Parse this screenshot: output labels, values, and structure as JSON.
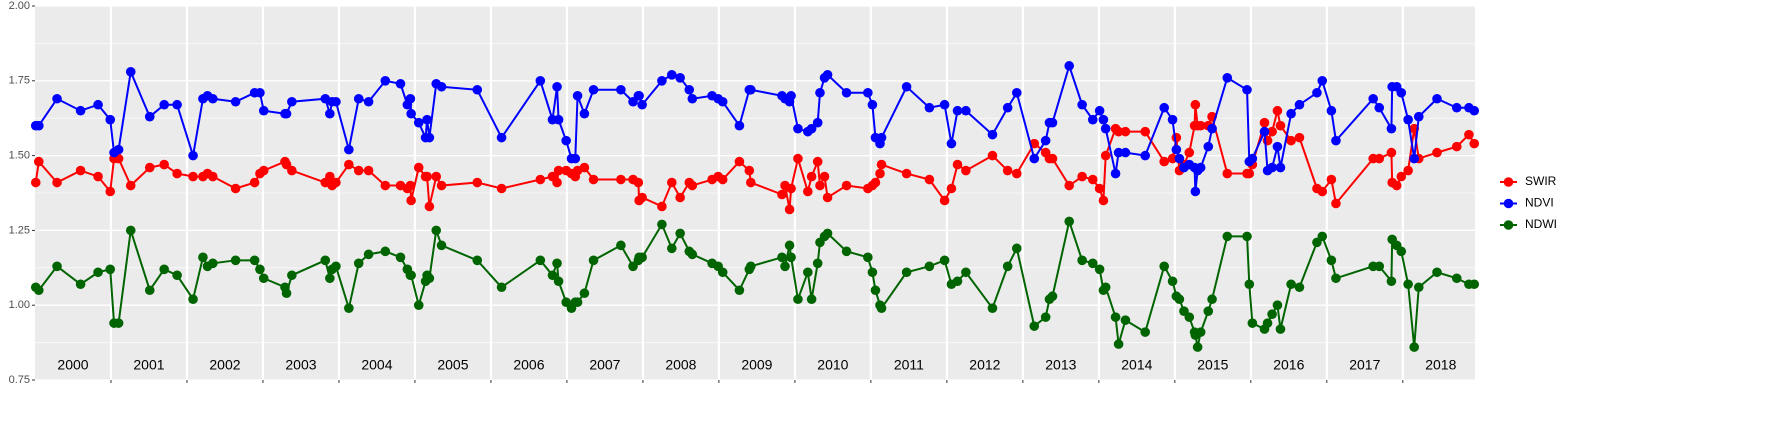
{
  "chart_data": {
    "type": "line",
    "x": [
      2000.01,
      2000.05,
      2000.29,
      2000.6,
      2000.83,
      2000.99,
      2001.04,
      2001.1,
      2001.26,
      2001.51,
      2001.7,
      2001.87,
      2002.08,
      2002.21,
      2002.27,
      2002.34,
      2002.64,
      2002.89,
      2002.96,
      2003.01,
      2003.29,
      2003.31,
      2003.38,
      2003.82,
      2003.88,
      2003.91,
      2003.96,
      2004.13,
      2004.26,
      2004.39,
      2004.61,
      2004.81,
      2004.9,
      2004.94,
      2004.95,
      2005.05,
      2005.14,
      2005.16,
      2005.19,
      2005.28,
      2005.35,
      2005.82,
      2006.14,
      2006.65,
      2006.81,
      2006.87,
      2006.89,
      2006.99,
      2007.06,
      2007.11,
      2007.14,
      2007.23,
      2007.35,
      2007.71,
      2007.87,
      2007.94,
      2007.95,
      2007.99,
      2008.25,
      2008.38,
      2008.49,
      2008.61,
      2008.65,
      2008.91,
      2008.99,
      2009.05,
      2009.27,
      2009.4,
      2009.42,
      2009.83,
      2009.87,
      2009.93,
      2009.95,
      2010.04,
      2010.17,
      2010.22,
      2010.3,
      2010.33,
      2010.39,
      2010.43,
      2010.68,
      2010.96,
      2011.02,
      2011.06,
      2011.12,
      2011.14,
      2011.47,
      2011.77,
      2011.97,
      2012.06,
      2012.14,
      2012.25,
      2012.6,
      2012.8,
      2012.92,
      2013.15,
      2013.3,
      2013.35,
      2013.39,
      2013.61,
      2013.78,
      2013.92,
      2014.01,
      2014.06,
      2014.09,
      2014.22,
      2014.26,
      2014.35,
      2014.61,
      2014.86,
      2014.97,
      2015.02,
      2015.06,
      2015.12,
      2015.19,
      2015.26,
      2015.27,
      2015.3,
      2015.34,
      2015.44,
      2015.49,
      2015.69,
      2015.95,
      2015.98,
      2016.02,
      2016.18,
      2016.22,
      2016.28,
      2016.35,
      2016.39,
      2016.53,
      2016.64,
      2016.87,
      2016.94,
      2017.06,
      2017.12,
      2017.61,
      2017.69,
      2017.85,
      2017.86,
      2017.92,
      2017.98,
      2018.07,
      2018.15,
      2018.21,
      2018.45,
      2018.71,
      2018.87,
      2018.94
    ],
    "series": [
      {
        "name": "SWIR",
        "color": "#ff0000",
        "values": [
          1.41,
          1.48,
          1.41,
          1.45,
          1.43,
          1.38,
          1.49,
          1.49,
          1.4,
          1.46,
          1.47,
          1.44,
          1.43,
          1.43,
          1.44,
          1.43,
          1.39,
          1.41,
          1.44,
          1.45,
          1.48,
          1.47,
          1.45,
          1.41,
          1.43,
          1.4,
          1.41,
          1.47,
          1.45,
          1.45,
          1.4,
          1.4,
          1.39,
          1.4,
          1.35,
          1.46,
          1.43,
          1.43,
          1.33,
          1.43,
          1.4,
          1.41,
          1.39,
          1.42,
          1.43,
          1.41,
          1.45,
          1.45,
          1.44,
          1.43,
          1.45,
          1.46,
          1.42,
          1.42,
          1.42,
          1.41,
          1.35,
          1.36,
          1.33,
          1.41,
          1.36,
          1.41,
          1.4,
          1.42,
          1.43,
          1.42,
          1.48,
          1.45,
          1.41,
          1.37,
          1.4,
          1.32,
          1.39,
          1.49,
          1.38,
          1.43,
          1.48,
          1.4,
          1.43,
          1.36,
          1.4,
          1.39,
          1.4,
          1.41,
          1.44,
          1.47,
          1.44,
          1.42,
          1.35,
          1.39,
          1.47,
          1.45,
          1.5,
          1.45,
          1.44,
          1.54,
          1.51,
          1.49,
          1.49,
          1.4,
          1.43,
          1.42,
          1.39,
          1.35,
          1.5,
          1.59,
          1.58,
          1.58,
          1.58,
          1.48,
          1.49,
          1.56,
          1.45,
          1.47,
          1.51,
          1.6,
          1.67,
          1.6,
          1.6,
          1.6,
          1.63,
          1.44,
          1.44,
          1.44,
          1.47,
          1.61,
          1.55,
          1.58,
          1.65,
          1.6,
          1.55,
          1.56,
          1.39,
          1.38,
          1.42,
          1.34,
          1.49,
          1.49,
          1.51,
          1.41,
          1.4,
          1.43,
          1.45,
          1.59,
          1.49,
          1.51,
          1.53,
          1.57,
          1.54
        ]
      },
      {
        "name": "NDVI",
        "color": "#0000ff",
        "values": [
          1.6,
          1.6,
          1.69,
          1.65,
          1.67,
          1.62,
          1.51,
          1.52,
          1.78,
          1.63,
          1.67,
          1.67,
          1.5,
          1.69,
          1.7,
          1.69,
          1.68,
          1.71,
          1.71,
          1.65,
          1.64,
          1.64,
          1.68,
          1.69,
          1.64,
          1.68,
          1.68,
          1.52,
          1.69,
          1.68,
          1.75,
          1.74,
          1.67,
          1.69,
          1.64,
          1.61,
          1.56,
          1.62,
          1.56,
          1.74,
          1.73,
          1.72,
          1.56,
          1.75,
          1.62,
          1.73,
          1.62,
          1.55,
          1.49,
          1.49,
          1.7,
          1.64,
          1.72,
          1.72,
          1.68,
          1.7,
          1.7,
          1.67,
          1.75,
          1.77,
          1.76,
          1.72,
          1.69,
          1.7,
          1.69,
          1.68,
          1.6,
          1.72,
          1.72,
          1.7,
          1.69,
          1.68,
          1.7,
          1.59,
          1.58,
          1.59,
          1.61,
          1.71,
          1.76,
          1.77,
          1.71,
          1.71,
          1.67,
          1.56,
          1.54,
          1.56,
          1.73,
          1.66,
          1.67,
          1.54,
          1.65,
          1.65,
          1.57,
          1.66,
          1.71,
          1.49,
          1.55,
          1.61,
          1.61,
          1.8,
          1.67,
          1.62,
          1.65,
          1.62,
          1.59,
          1.44,
          1.51,
          1.51,
          1.5,
          1.66,
          1.62,
          1.52,
          1.49,
          1.46,
          1.47,
          1.46,
          1.38,
          1.45,
          1.46,
          1.53,
          1.59,
          1.76,
          1.72,
          1.48,
          1.49,
          1.58,
          1.45,
          1.46,
          1.53,
          1.46,
          1.64,
          1.67,
          1.71,
          1.75,
          1.65,
          1.55,
          1.69,
          1.66,
          1.59,
          1.73,
          1.73,
          1.71,
          1.62,
          1.49,
          1.63,
          1.69,
          1.66,
          1.66,
          1.65
        ]
      },
      {
        "name": "NDWI",
        "color": "#006400",
        "values": [
          1.06,
          1.05,
          1.13,
          1.07,
          1.11,
          1.12,
          0.94,
          0.94,
          1.25,
          1.05,
          1.12,
          1.1,
          1.02,
          1.16,
          1.13,
          1.14,
          1.15,
          1.15,
          1.12,
          1.09,
          1.06,
          1.04,
          1.1,
          1.15,
          1.09,
          1.12,
          1.13,
          0.99,
          1.14,
          1.17,
          1.18,
          1.16,
          1.12,
          1.1,
          1.1,
          1.0,
          1.08,
          1.1,
          1.09,
          1.25,
          1.2,
          1.15,
          1.06,
          1.15,
          1.1,
          1.14,
          1.08,
          1.01,
          0.99,
          1.01,
          1.01,
          1.04,
          1.15,
          1.2,
          1.13,
          1.15,
          1.16,
          1.16,
          1.27,
          1.19,
          1.24,
          1.18,
          1.17,
          1.14,
          1.13,
          1.11,
          1.05,
          1.12,
          1.13,
          1.16,
          1.13,
          1.2,
          1.16,
          1.02,
          1.11,
          1.02,
          1.14,
          1.21,
          1.23,
          1.24,
          1.18,
          1.16,
          1.11,
          1.05,
          1.0,
          0.99,
          1.11,
          1.13,
          1.15,
          1.07,
          1.08,
          1.11,
          0.99,
          1.13,
          1.19,
          0.93,
          0.96,
          1.02,
          1.03,
          1.28,
          1.15,
          1.14,
          1.12,
          1.05,
          1.06,
          0.96,
          0.87,
          0.95,
          0.91,
          1.13,
          1.08,
          1.03,
          1.02,
          0.98,
          0.96,
          0.91,
          0.9,
          0.86,
          0.91,
          0.98,
          1.02,
          1.23,
          1.23,
          1.07,
          0.94,
          0.92,
          0.94,
          0.97,
          1.0,
          0.92,
          1.07,
          1.06,
          1.21,
          1.23,
          1.15,
          1.09,
          1.13,
          1.13,
          1.08,
          1.22,
          1.2,
          1.18,
          1.07,
          0.86,
          1.06,
          1.11,
          1.09,
          1.07,
          1.07
        ]
      }
    ],
    "xlim": [
      2000,
      2018.95
    ],
    "xticks": [
      2001,
      2002,
      2003,
      2004,
      2005,
      2006,
      2007,
      2008,
      2009,
      2010,
      2011,
      2012,
      2013,
      2014,
      2015,
      2016,
      2017,
      2018
    ],
    "ylim": [
      0.75,
      2.0
    ],
    "yticks": [
      {
        "value": 0.75,
        "label": "0.75"
      },
      {
        "value": 1,
        "label": "1.00"
      },
      {
        "value": 1.25,
        "label": "1.25"
      },
      {
        "value": 1.5,
        "label": "1.50"
      },
      {
        "value": 1.75,
        "label": "1.75"
      },
      {
        "value": 2,
        "label": "2.00"
      }
    ],
    "annotations": [
      {
        "text": "2000",
        "x": 2000.5
      },
      {
        "text": "2001",
        "x": 2001.5
      },
      {
        "text": "2002",
        "x": 2002.5
      },
      {
        "text": "2003",
        "x": 2003.5
      },
      {
        "text": "2004",
        "x": 2004.5
      },
      {
        "text": "2005",
        "x": 2005.5
      },
      {
        "text": "2006",
        "x": 2006.5
      },
      {
        "text": "2007",
        "x": 2007.5
      },
      {
        "text": "2008",
        "x": 2008.5
      },
      {
        "text": "2009",
        "x": 2009.5
      },
      {
        "text": "2010",
        "x": 2010.5
      },
      {
        "text": "2011",
        "x": 2011.5
      },
      {
        "text": "2012",
        "x": 2012.5
      },
      {
        "text": "2013",
        "x": 2013.5
      },
      {
        "text": "2014",
        "x": 2014.5
      },
      {
        "text": "2015",
        "x": 2015.5
      },
      {
        "text": "2016",
        "x": 2016.5
      },
      {
        "text": "2017",
        "x": 2017.5
      },
      {
        "text": "2018",
        "x": 2018.5
      }
    ],
    "grid": true,
    "legend": "right"
  }
}
